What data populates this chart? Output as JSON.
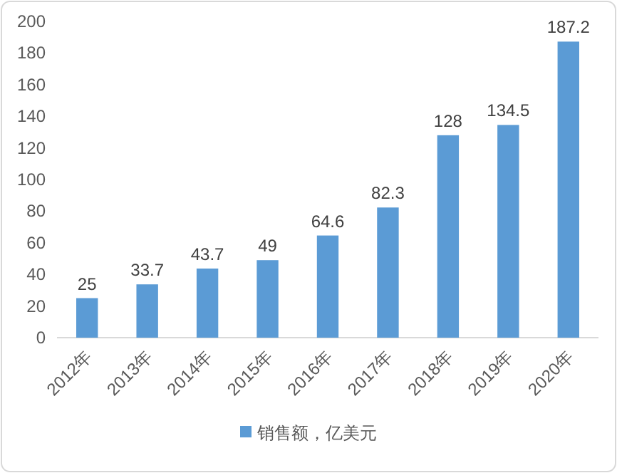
{
  "chart_data": {
    "type": "bar",
    "categories": [
      "2012年",
      "2013年",
      "2014年",
      "2015年",
      "2016年",
      "2017年",
      "2018年",
      "2019年",
      "2020年"
    ],
    "series": [
      {
        "name": "销售额，亿美元",
        "color": "#5b9bd5",
        "values": [
          25,
          33.7,
          43.7,
          49,
          64.6,
          82.3,
          128,
          134.5,
          187.2
        ]
      }
    ],
    "ylim": [
      0,
      200
    ],
    "yticks": [
      0,
      20,
      40,
      60,
      80,
      100,
      120,
      140,
      160,
      180,
      200
    ],
    "data_labels": true,
    "legend": "bottom",
    "grid": false
  }
}
